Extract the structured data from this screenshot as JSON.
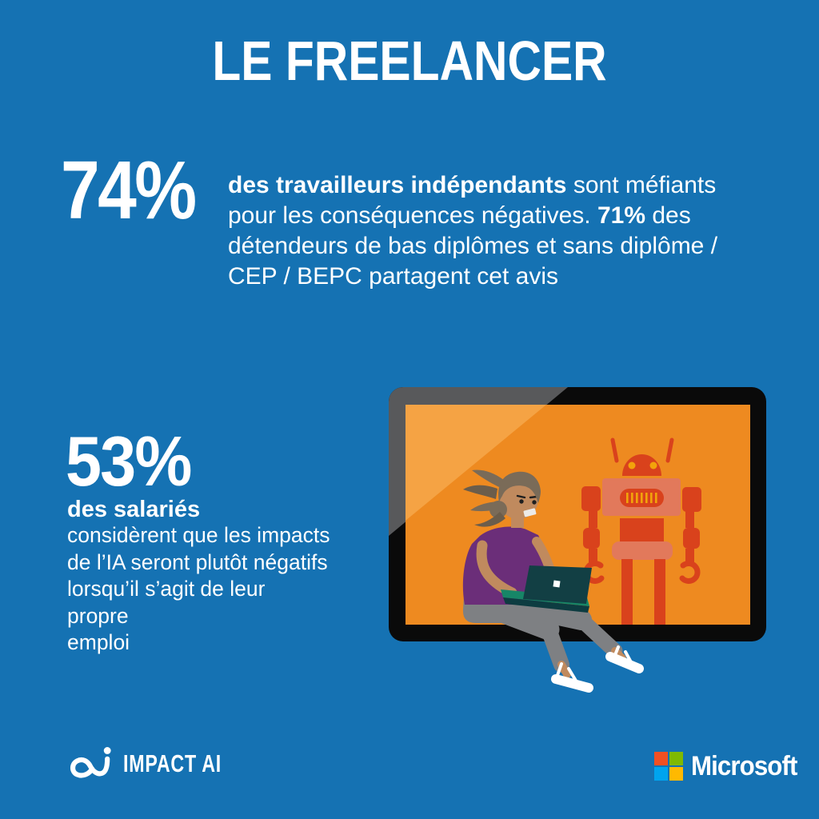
{
  "page": {
    "background_color": "#1572B3",
    "text_color": "#FFFFFF"
  },
  "header": {
    "title": "LE FREELANCER"
  },
  "stats": {
    "freelancers": {
      "value": "74%",
      "lines": [
        [
          {
            "t": "des travailleurs indépendants",
            "b": true
          },
          {
            "t": " sont méfiants",
            "b": false
          }
        ],
        [
          {
            "t": "pour les conséquences négatives. ",
            "b": false
          },
          {
            "t": "71%",
            "b": true
          },
          {
            "t": " des",
            "b": false
          }
        ],
        [
          {
            "t": "détendeurs de bas diplômes et sans diplôme /",
            "b": false
          }
        ],
        [
          {
            "t": "CEP / BEPC partagent cet avis",
            "b": false
          }
        ]
      ]
    },
    "employees": {
      "value": "53%",
      "label": "des salariés",
      "description": "considèrent que les impacts\nde l’IA seront plutôt négatifs\nlorsqu’il s’agit de leur propre\nemploi"
    }
  },
  "illustration": {
    "name": "woman-laptop-robot-screen",
    "colors": {
      "screen_orange": "#EE8A20",
      "screen_glare": "#F5A344",
      "bezel_black": "#0A0A0A",
      "bezel_gray": "#58595B",
      "robot_red": "#D9421C",
      "robot_salmon": "#E2795B",
      "robot_yellow": "#F2A30B",
      "skin": "#C08A5E",
      "hair": "#7A6B58",
      "top_purple": "#6B2E79",
      "pants_gray": "#7E8083",
      "laptop_lid": "#123F44",
      "laptop_edge_green": "#178667"
    }
  },
  "footer": {
    "impact_ai": {
      "label": "IMPACT AI"
    },
    "microsoft": {
      "label": "Microsoft",
      "square_colors": [
        "#F25022",
        "#7FBA00",
        "#00A4EF",
        "#FFB900"
      ]
    }
  }
}
